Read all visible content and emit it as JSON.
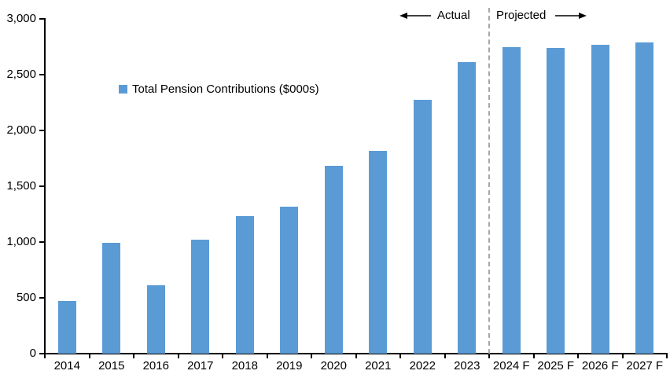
{
  "chart_data": {
    "type": "bar",
    "title": "",
    "xlabel": "",
    "ylabel": "",
    "categories": [
      "2014",
      "2015",
      "2016",
      "2017",
      "2018",
      "2019",
      "2020",
      "2021",
      "2022",
      "2023",
      "2024 F",
      "2025 F",
      "2026 F",
      "2027 F"
    ],
    "values": [
      470,
      990,
      610,
      1020,
      1230,
      1315,
      1680,
      1815,
      2275,
      2610,
      2750,
      2740,
      2765,
      2790
    ],
    "legend": "Total Pension Contributions ($000s)",
    "legend_position": "inside-top-left",
    "ylim": [
      0,
      3000
    ],
    "ytick_interval": 500,
    "ytick_labels": [
      "0",
      "500",
      "1,000",
      "1,500",
      "2,000",
      "2,500",
      "3,000"
    ],
    "grid": false,
    "bar_color": "#5B9BD5",
    "axis_color": "#000000",
    "divider": {
      "after_category": "2023",
      "style": "dashed",
      "color": "#A6A6A6"
    },
    "annotations": {
      "actual_label": "Actual",
      "actual_arrow_direction": "left",
      "projected_label": "Projected",
      "projected_arrow_direction": "right"
    }
  }
}
